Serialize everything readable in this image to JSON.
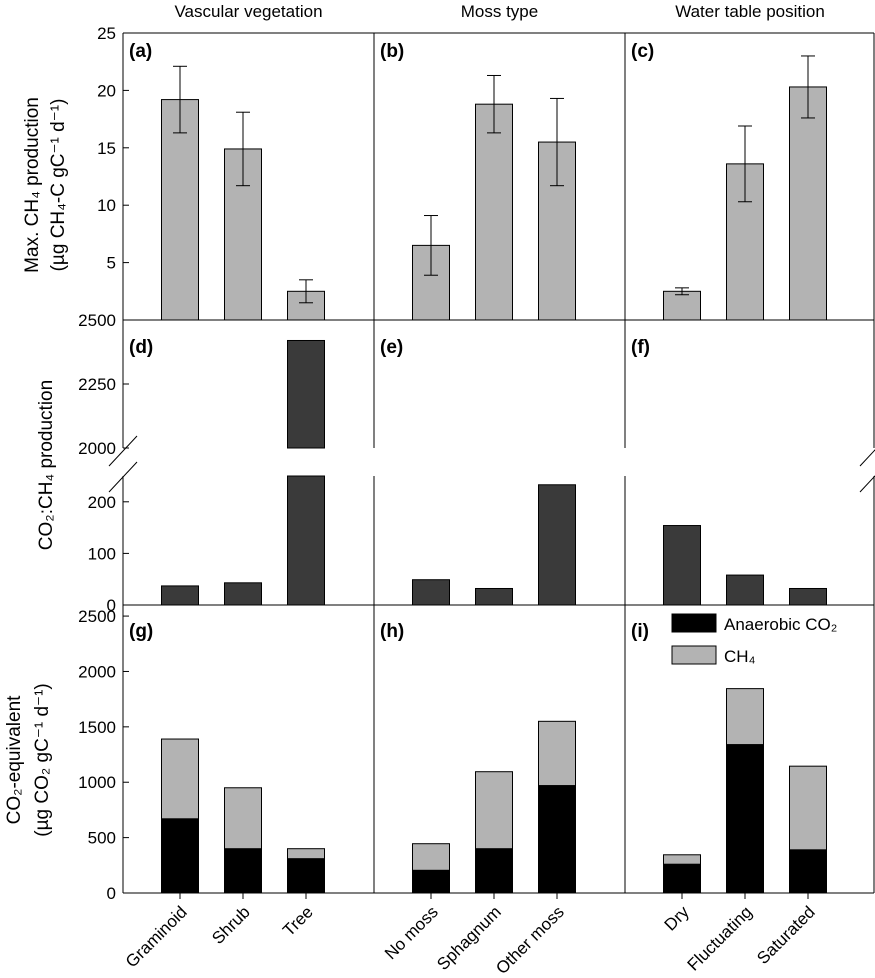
{
  "colors": {
    "gray": "#b3b3b3",
    "dark": "#3a3a3a",
    "black": "#000000"
  },
  "chart_data": {
    "type": "bar",
    "column_titles": [
      "Vascular vegetation",
      "Moss type",
      "Water table position"
    ],
    "groups": [
      [
        "Graminoid",
        "Shrub",
        "Tree"
      ],
      [
        "No moss",
        "Sphagnum",
        "Other moss"
      ],
      [
        "Dry",
        "Fluctuating",
        "Saturated"
      ]
    ],
    "rows": [
      {
        "type": "bar",
        "ylabel_line1": "Max. CH₄ production",
        "ylabel_line2": "(µg CH₄-C gC⁻¹ d⁻¹)",
        "ylim": [
          0,
          25
        ],
        "yticks": [
          5,
          10,
          15,
          20,
          25
        ],
        "panels": [
          {
            "label": "(a)",
            "values": [
              19.2,
              14.9,
              2.5
            ],
            "errors": [
              2.9,
              3.2,
              1.0
            ]
          },
          {
            "label": "(b)",
            "values": [
              6.5,
              18.8,
              15.5
            ],
            "errors": [
              2.6,
              2.5,
              3.8
            ]
          },
          {
            "label": "(c)",
            "values": [
              2.5,
              13.6,
              20.3
            ],
            "errors": [
              0.3,
              3.3,
              2.7
            ]
          }
        ]
      },
      {
        "type": "bar",
        "ylabel": "CO₂:CH₄ production",
        "broken_axis": true,
        "lower_ylim": [
          0,
          250
        ],
        "lower_yticks": [
          0,
          100,
          200
        ],
        "upper_ylim": [
          2000,
          2500
        ],
        "upper_yticks": [
          2000,
          2250,
          2500
        ],
        "panels": [
          {
            "label": "(d)",
            "values": [
              37,
              43,
              2420
            ]
          },
          {
            "label": "(e)",
            "values": [
              49,
              32,
              233
            ]
          },
          {
            "label": "(f)",
            "values": [
              154,
              58,
              32
            ]
          }
        ]
      },
      {
        "type": "bar",
        "stacked": true,
        "ylabel_line1": "CO₂-equivalent",
        "ylabel_line2": "(µg CO₂ gC⁻¹ d⁻¹)",
        "ylim": [
          0,
          2600
        ],
        "yticks": [
          0,
          500,
          1000,
          1500,
          2000,
          2500
        ],
        "series_names": [
          "Anaerobic CO₂",
          "CH₄"
        ],
        "panels": [
          {
            "label": "(g)",
            "anaerobic_co2": [
              670,
              400,
              310
            ],
            "ch4": [
              720,
              550,
              90
            ]
          },
          {
            "label": "(h)",
            "anaerobic_co2": [
              205,
              400,
              970
            ],
            "ch4": [
              240,
              695,
              580
            ]
          },
          {
            "label": "(i)",
            "anaerobic_co2": [
              260,
              1340,
              390
            ],
            "ch4": [
              85,
              505,
              755
            ]
          }
        ]
      }
    ]
  }
}
